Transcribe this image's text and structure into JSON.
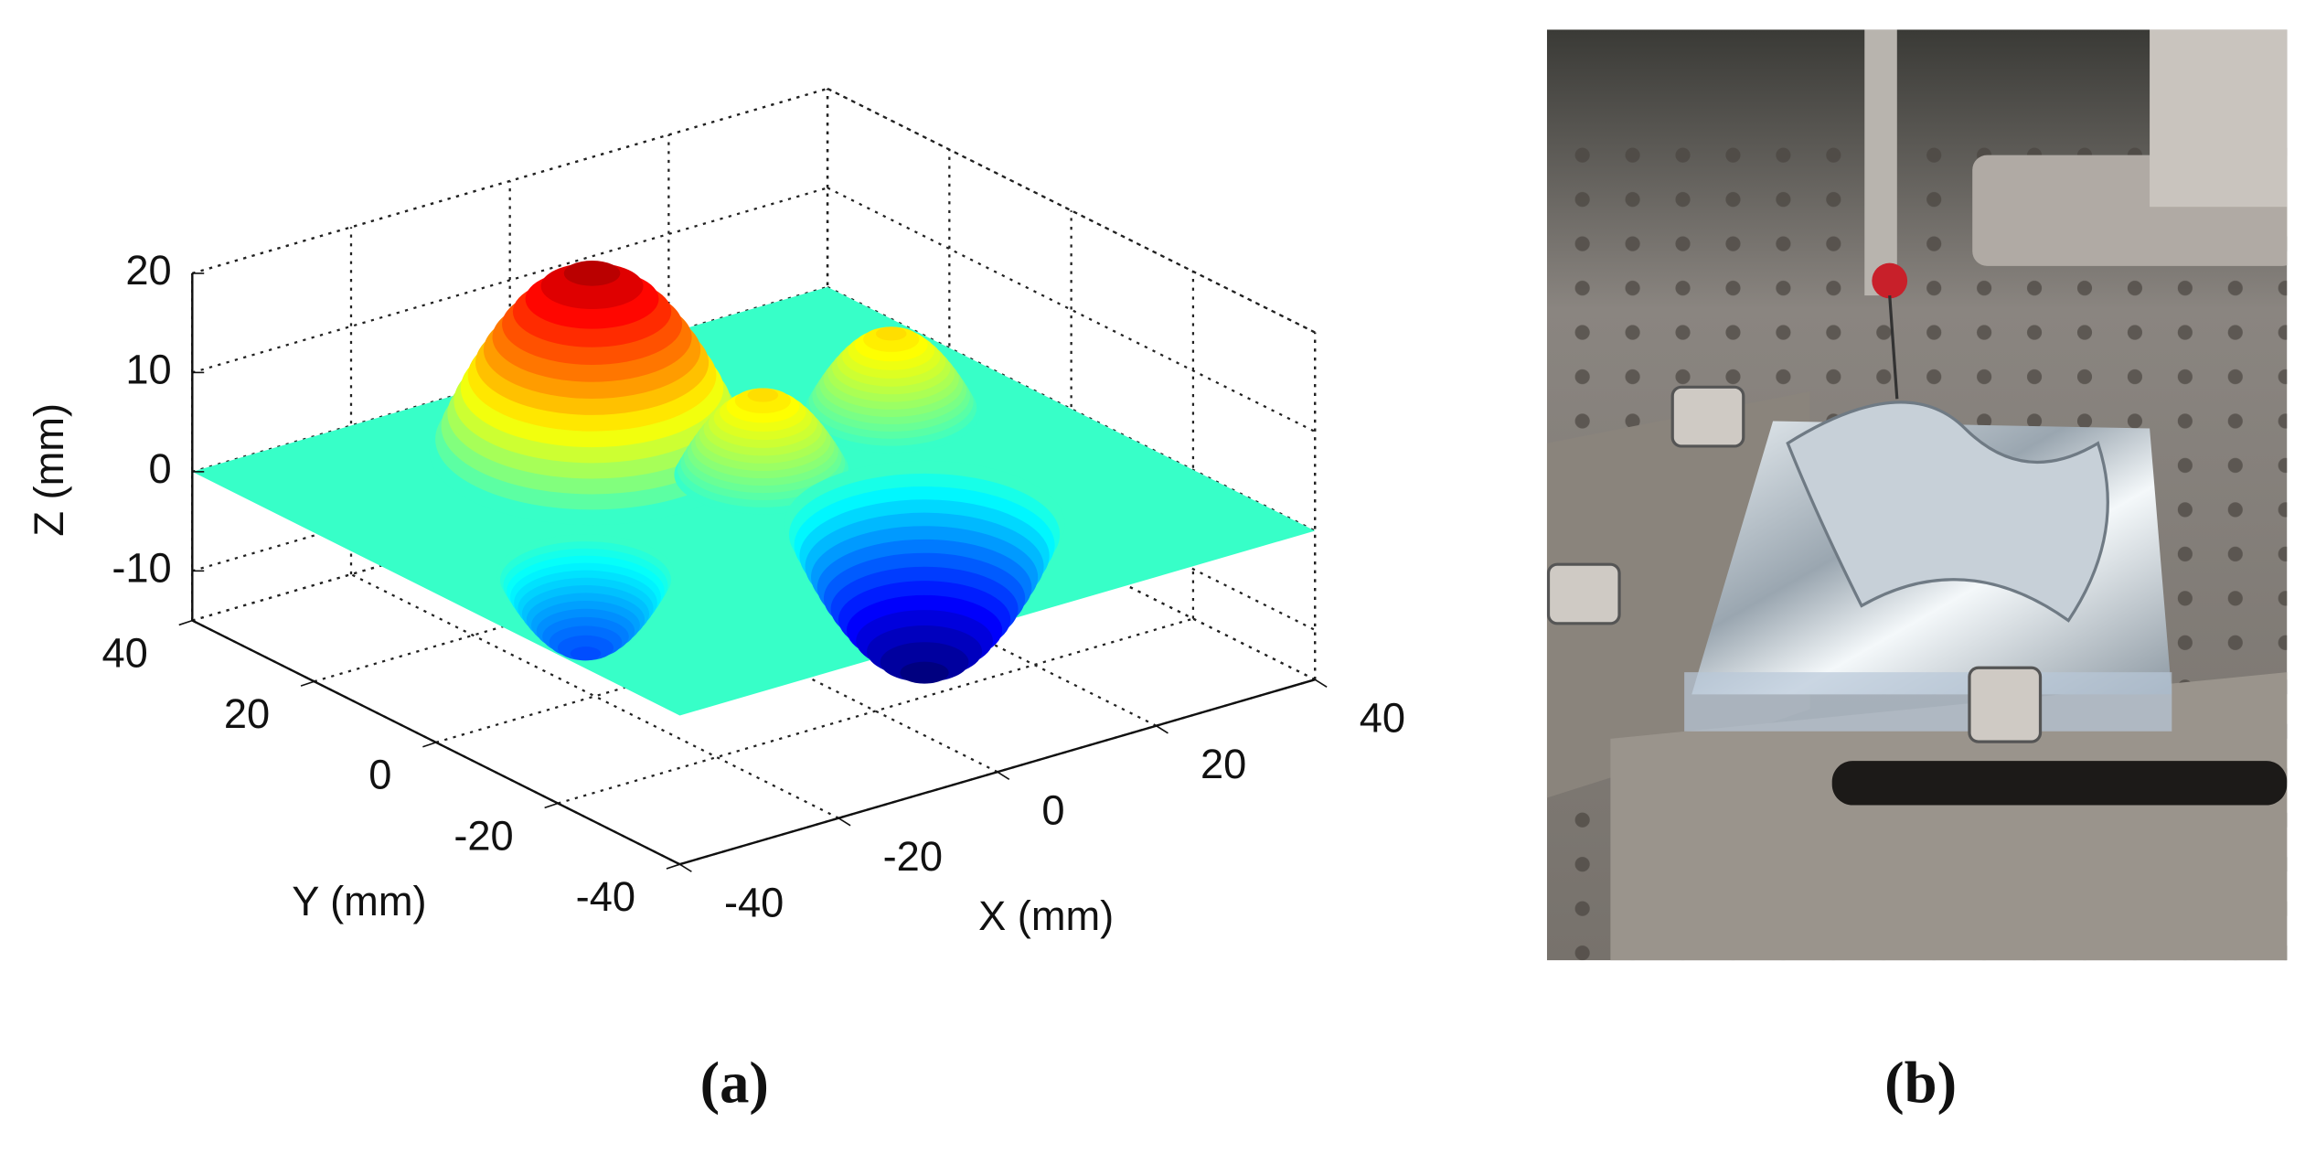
{
  "chart_data": {
    "type": "surface",
    "xlabel": "X (mm)",
    "ylabel": "Y (mm)",
    "zlabel": "Z (mm)",
    "xlim": [
      -40,
      40
    ],
    "ylim": [
      -40,
      40
    ],
    "zlim": [
      -15,
      20
    ],
    "xticks": [
      -40,
      -20,
      0,
      20,
      40
    ],
    "yticks": [
      -40,
      -20,
      0,
      20,
      40
    ],
    "zticks": [
      -10,
      0,
      10,
      20
    ],
    "grid": true,
    "colormap": "jet",
    "peaks": [
      {
        "x": -5,
        "y": 20,
        "z": 18
      },
      {
        "x": 25,
        "y": 10,
        "z": 8
      },
      {
        "x": -25,
        "y": -5,
        "z": -8
      },
      {
        "x": 5,
        "y": 5,
        "z": 8
      },
      {
        "x": 10,
        "y": -15,
        "z": -15
      }
    ],
    "panel_label": "(a)"
  },
  "photo": {
    "panel_label": "(b)"
  }
}
